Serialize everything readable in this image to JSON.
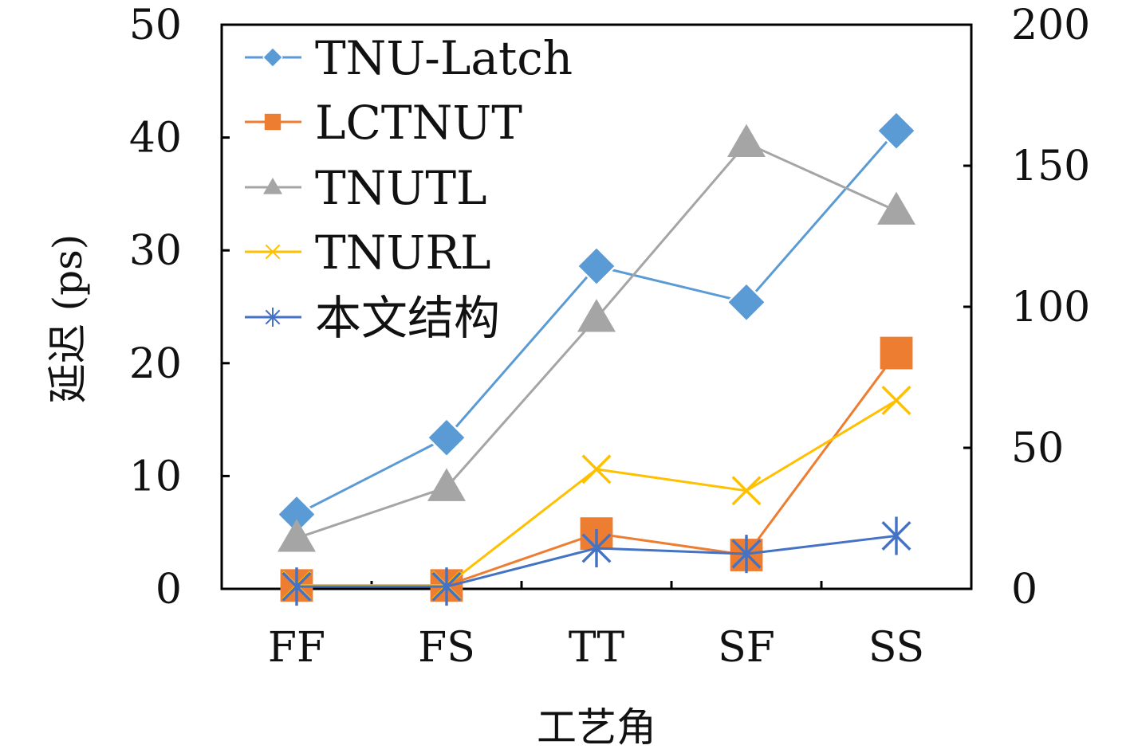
{
  "chart_data": {
    "type": "line",
    "categories": [
      "FF",
      "FS",
      "TT",
      "SF",
      "SS"
    ],
    "xlabel": "工艺角",
    "ylabel": "延迟 (ps)",
    "ylim_left": [
      0,
      50
    ],
    "yticks_left": [
      0,
      10,
      20,
      30,
      40,
      50
    ],
    "ylim_right": [
      0,
      200
    ],
    "yticks_right": [
      0,
      50,
      100,
      150,
      200
    ],
    "grid": false,
    "legend_position": "top-left",
    "series": [
      {
        "name": "TNU-Latch",
        "axis": "left",
        "color": "#5B9BD5",
        "marker": "diamond",
        "values": [
          6.6,
          13.4,
          28.6,
          25.4,
          40.6
        ]
      },
      {
        "name": "LCTNUT",
        "axis": "left",
        "color": "#ED7D31",
        "marker": "square",
        "values": [
          0.3,
          0.3,
          4.9,
          3.0,
          20.9
        ]
      },
      {
        "name": "TNUTL",
        "axis": "right",
        "color": "#A5A5A5",
        "marker": "triangle",
        "values": [
          18,
          36,
          96,
          158,
          134
        ]
      },
      {
        "name": "TNURL",
        "axis": "left",
        "color": "#FFC000",
        "marker": "x",
        "values": [
          0.3,
          0.3,
          10.6,
          8.7,
          16.7
        ]
      },
      {
        "name": "本文结构",
        "axis": "left",
        "color": "#4472C4",
        "marker": "asterisk",
        "values": [
          0.2,
          0.2,
          3.6,
          3.1,
          4.7
        ]
      }
    ]
  }
}
